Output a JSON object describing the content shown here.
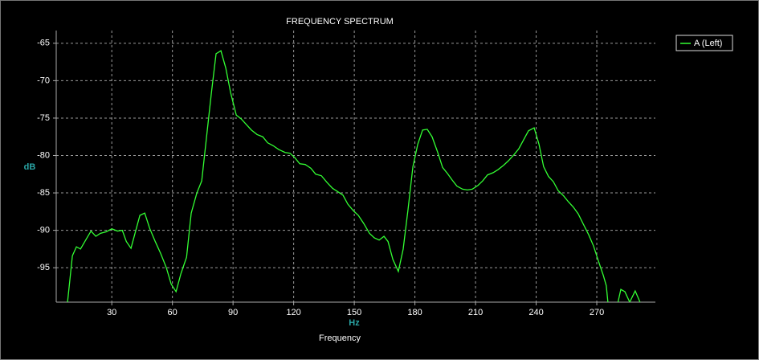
{
  "chart_data": {
    "type": "line",
    "title": "FREQUENCY SPECTRUM",
    "xlabel": "Frequency",
    "x_unit": "Hz",
    "ylabel": "dB",
    "legend": "upper right outside",
    "grid": true,
    "xlim": [
      2.5,
      299
    ],
    "xticks": [
      30,
      60,
      90,
      120,
      150,
      180,
      210,
      240,
      270
    ],
    "ylim": [
      -99.6,
      -63.3
    ],
    "yticks": [
      -65,
      -70,
      -75,
      -80,
      -85,
      -90,
      -95
    ],
    "x": [
      8.1,
      10.5,
      12.5,
      14.5,
      17.3,
      19.7,
      22.1,
      24.4,
      27.2,
      30,
      32.8,
      35.2,
      37.2,
      39.5,
      41.5,
      43.9,
      46.3,
      48.7,
      51.5,
      54.2,
      57,
      59.4,
      61.8,
      64.2,
      67,
      69.3,
      72.1,
      74.5,
      76.9,
      79.3,
      81.6,
      84,
      86.4,
      88.8,
      91.6,
      94,
      96.7,
      99.1,
      101.9,
      104.7,
      107.1,
      109.9,
      112.6,
      115.8,
      118.2,
      120.6,
      123,
      125.7,
      128.5,
      130.9,
      133.7,
      136.5,
      139.3,
      141.6,
      144.4,
      146.8,
      149.6,
      152,
      154.7,
      157.5,
      159.9,
      162.3,
      164.7,
      166.7,
      169.1,
      171.8,
      174.2,
      176.6,
      179,
      181.4,
      183.8,
      186.1,
      188.5,
      191.3,
      193.7,
      196.1,
      198.5,
      200.8,
      203.6,
      206,
      208.4,
      211.2,
      213.5,
      215.9,
      218.7,
      221.1,
      223.9,
      226.3,
      229,
      231.4,
      233.8,
      236.2,
      239,
      241.4,
      243.7,
      246.1,
      248.5,
      250.9,
      253.6,
      256,
      258.4,
      260.8,
      263.2,
      266,
      268.4,
      270.8,
      273.2,
      274.7,
      275.5,
      278,
      280.5,
      281.9,
      283.9,
      286.3,
      289,
      291.4
    ],
    "series": [
      {
        "name": "A (Left)",
        "color": "#33ff33",
        "values": [
          -99.6,
          -93.4,
          -92.2,
          -92.5,
          -91.2,
          -90.1,
          -90.8,
          -90.4,
          -90.2,
          -89.8,
          -90.1,
          -90,
          -91.5,
          -92.4,
          -90.4,
          -88,
          -87.7,
          -89.7,
          -91.5,
          -93.1,
          -95,
          -97.2,
          -98.2,
          -95.8,
          -93.6,
          -87.7,
          -85,
          -83.4,
          -77.5,
          -71.6,
          -66.4,
          -66,
          -68.3,
          -71.6,
          -74.6,
          -75.1,
          -75.9,
          -76.6,
          -77.2,
          -77.5,
          -78.3,
          -78.7,
          -79.2,
          -79.6,
          -79.7,
          -80.3,
          -81.1,
          -81.2,
          -81.7,
          -82.5,
          -82.7,
          -83.6,
          -84.4,
          -84.8,
          -85.3,
          -86.5,
          -87.4,
          -88,
          -89.1,
          -90.4,
          -91,
          -91.3,
          -90.8,
          -91.5,
          -93.9,
          -95.5,
          -92.5,
          -87.2,
          -81.5,
          -78.5,
          -76.6,
          -76.5,
          -77.5,
          -79.6,
          -81.6,
          -82.4,
          -83.3,
          -84.1,
          -84.5,
          -84.6,
          -84.5,
          -84,
          -83.4,
          -82.6,
          -82.3,
          -81.9,
          -81.3,
          -80.7,
          -79.9,
          -79.1,
          -77.9,
          -76.7,
          -76.3,
          -78.5,
          -81.5,
          -82.8,
          -83.5,
          -84.7,
          -85.4,
          -86.2,
          -86.9,
          -87.8,
          -89.1,
          -90.6,
          -92.1,
          -94.1,
          -96,
          -97.4,
          -99.6,
          null,
          -99.6,
          -97.9,
          -98.2,
          -99.6,
          -98.1,
          -99.6
        ]
      }
    ]
  }
}
